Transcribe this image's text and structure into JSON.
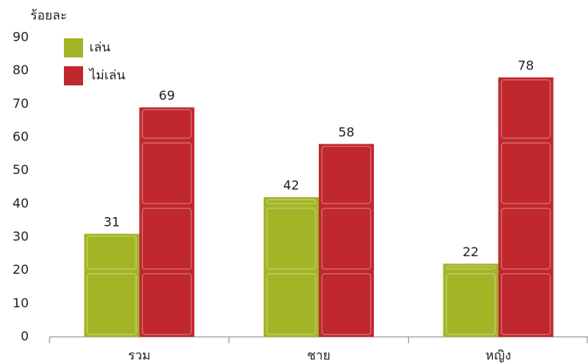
{
  "chart_data": {
    "type": "bar",
    "y_label": "ร้อยละ",
    "categories": [
      "รวม",
      "ชาย",
      "หญิง"
    ],
    "series": [
      {
        "name": "เล่น",
        "color": "#a3b526",
        "values": [
          31,
          42,
          22
        ]
      },
      {
        "name": "ไม่เล่น",
        "color": "#c0282e",
        "values": [
          69,
          58,
          78
        ]
      }
    ],
    "ylim": [
      0,
      90
    ],
    "yticks": [
      0,
      10,
      20,
      30,
      40,
      50,
      60,
      70,
      80,
      90
    ],
    "grid": false,
    "legend": "top-left"
  }
}
